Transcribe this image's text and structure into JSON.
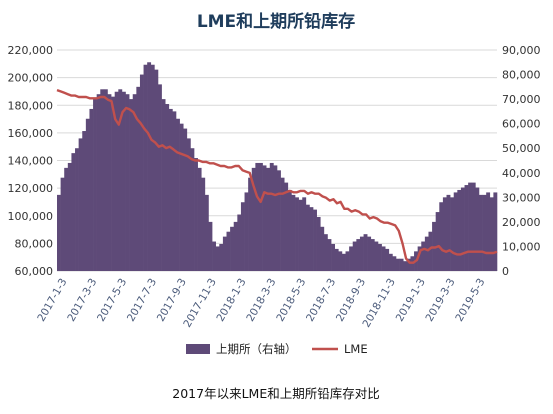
{
  "caption": "2017年以来LME和上期所铅库存对比",
  "colors": {
    "bar": "#5e4a78",
    "bar_edge": "#4a3a62",
    "line": "#c0504d",
    "title": "#1f3d5c"
  },
  "chart_data": {
    "type": "bar+line",
    "title": "LME和上期所铅库存",
    "left_axis": {
      "min": 60000,
      "max": 220000,
      "step": 20000,
      "ticks": [
        "60,000",
        "80,000",
        "100,000",
        "120,000",
        "140,000",
        "160,000",
        "180,000",
        "200,000",
        "220,000"
      ]
    },
    "right_axis": {
      "min": 0,
      "max": 90000,
      "step": 10000,
      "ticks": [
        "0",
        "10,000",
        "20,000",
        "30,000",
        "40,000",
        "50,000",
        "60,000",
        "70,000",
        "80,000",
        "90,000"
      ]
    },
    "x_labels": [
      "2017-1-3",
      "2017-3-3",
      "2017-5-3",
      "2017-7-3",
      "2017-9-3",
      "2017-11-3",
      "2018-1-3",
      "2018-3-3",
      "2018-5-3",
      "2018-7-3",
      "2018-9-3",
      "2018-11-3",
      "2019-1-3",
      "2019-3-3",
      "2019-5-3"
    ],
    "legend_placement": "bottom",
    "grid": true,
    "series": [
      {
        "name": "上期所（右轴）",
        "type": "bar",
        "axis": "right",
        "values": [
          31000,
          38000,
          42000,
          44000,
          48000,
          50000,
          54000,
          57000,
          62000,
          66000,
          70000,
          72000,
          74000,
          74000,
          72000,
          71000,
          73000,
          74000,
          73000,
          72000,
          70000,
          72000,
          75000,
          80000,
          84000,
          85000,
          84000,
          82000,
          76000,
          70000,
          68000,
          66000,
          65000,
          62000,
          60000,
          58000,
          54000,
          50000,
          46000,
          42000,
          38000,
          31000,
          20000,
          12000,
          10000,
          11000,
          14000,
          16000,
          18000,
          20000,
          23000,
          28000,
          32000,
          38000,
          42000,
          44000,
          44000,
          43000,
          42000,
          44000,
          43000,
          41000,
          38000,
          36000,
          33000,
          31000,
          30000,
          29000,
          30000,
          27000,
          26000,
          25000,
          22000,
          18000,
          15000,
          13000,
          11000,
          9000,
          8000,
          7000,
          8000,
          10000,
          12000,
          13000,
          14000,
          15000,
          14000,
          13000,
          12000,
          11000,
          10000,
          9000,
          7000,
          6000,
          5000,
          5000,
          4000,
          5000,
          6000,
          8000,
          10000,
          12000,
          14000,
          16000,
          20000,
          24000,
          28000,
          30000,
          31000,
          30000,
          32000,
          33000,
          34000,
          35000,
          36000,
          36000,
          34000,
          31000,
          31000,
          32000,
          30000,
          32000
        ]
      },
      {
        "name": "LME",
        "type": "line",
        "axis": "left",
        "values": [
          191000,
          190000,
          189000,
          188000,
          187000,
          187000,
          186000,
          186000,
          186000,
          185000,
          185000,
          185000,
          186000,
          186000,
          184000,
          183000,
          170000,
          166000,
          175000,
          178000,
          177000,
          175000,
          170000,
          167000,
          163000,
          160000,
          155000,
          153000,
          150000,
          151000,
          149000,
          150000,
          148000,
          146000,
          145000,
          144000,
          143000,
          141000,
          140000,
          140000,
          139000,
          139000,
          138000,
          138000,
          137000,
          136000,
          136000,
          135000,
          135000,
          136000,
          136000,
          133000,
          132000,
          131000,
          122000,
          114000,
          110000,
          117000,
          116000,
          116000,
          115000,
          116000,
          116000,
          117000,
          118000,
          117000,
          117000,
          118000,
          118000,
          116000,
          117000,
          116000,
          116000,
          114000,
          113000,
          111000,
          112000,
          109000,
          110000,
          105000,
          105000,
          103000,
          104000,
          103000,
          101000,
          101000,
          98000,
          99000,
          98000,
          96000,
          95000,
          95000,
          94000,
          93000,
          89000,
          80000,
          69000,
          66000,
          66000,
          68000,
          75000,
          76000,
          75000,
          77000,
          77000,
          78000,
          75000,
          74000,
          75000,
          73000,
          72000,
          72000,
          73000,
          74000,
          74000,
          74000,
          74000,
          74000,
          73000,
          73000,
          73000,
          74000
        ]
      }
    ]
  }
}
